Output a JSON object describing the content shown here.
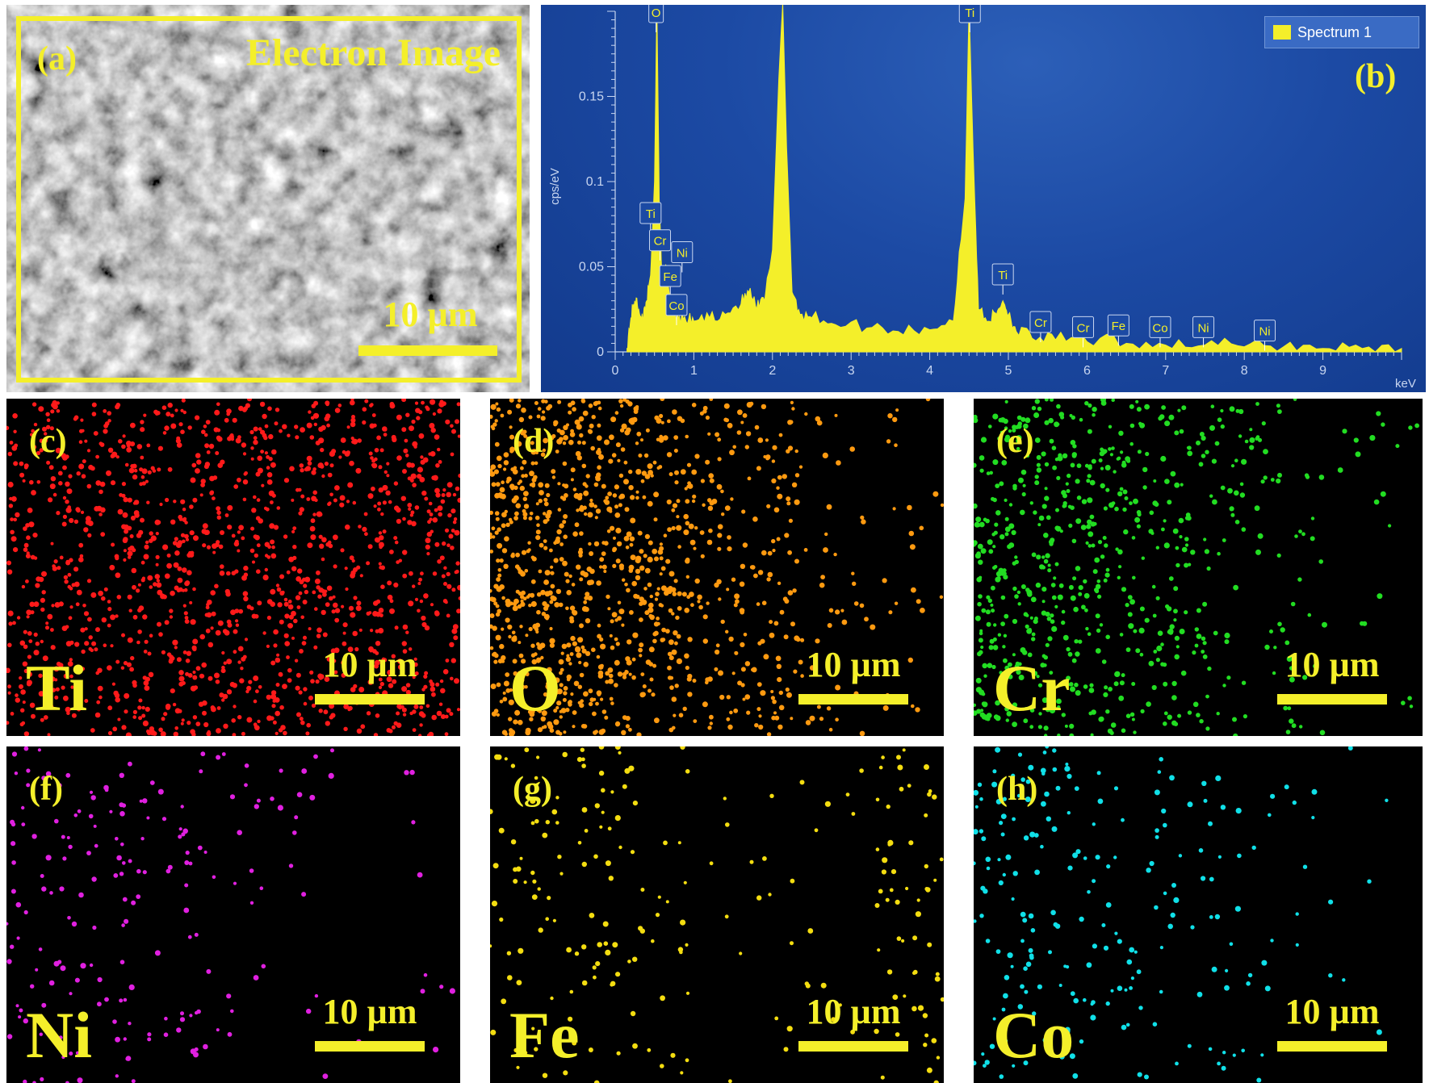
{
  "panel_a": {
    "label": "(a)",
    "title": "Electron Image",
    "scale_bar": "10 µm"
  },
  "panel_b": {
    "label": "(b)",
    "legend": "Spectrum 1",
    "colors": {
      "spectrum": "#f4ef2a",
      "background": "#1c4aa4"
    }
  },
  "chart_data": {
    "type": "line",
    "xlabel": "keV",
    "ylabel": "cps/eV",
    "xlim": [
      0,
      10
    ],
    "ylim": [
      0,
      0.2
    ],
    "x_ticks": [
      "0",
      "1",
      "2",
      "3",
      "4",
      "5",
      "6",
      "7",
      "8",
      "9"
    ],
    "y_ticks": [
      "0",
      "0.05",
      "0.1",
      "0.15"
    ],
    "legend_position": "top-right",
    "series": [
      {
        "name": "Spectrum 1",
        "x": [
          0.15,
          0.2,
          0.25,
          0.3,
          0.35,
          0.4,
          0.45,
          0.5,
          0.53,
          0.56,
          0.6,
          0.65,
          0.7,
          0.75,
          0.8,
          0.9,
          1.0,
          1.2,
          1.4,
          1.6,
          1.7,
          1.8,
          1.9,
          2.0,
          2.08,
          2.13,
          2.18,
          2.25,
          2.35,
          2.5,
          2.8,
          3.2,
          3.6,
          4.0,
          4.3,
          4.45,
          4.5,
          4.55,
          4.62,
          4.75,
          4.85,
          4.93,
          5.0,
          5.1,
          5.3,
          5.6,
          6.0,
          6.5,
          7.0,
          7.5,
          8.0,
          8.5,
          9.0,
          9.5,
          10.0
        ],
        "y": [
          0.002,
          0.02,
          0.03,
          0.025,
          0.018,
          0.03,
          0.045,
          0.1,
          0.205,
          0.09,
          0.04,
          0.05,
          0.03,
          0.022,
          0.02,
          0.018,
          0.018,
          0.02,
          0.022,
          0.028,
          0.035,
          0.025,
          0.03,
          0.06,
          0.16,
          0.205,
          0.12,
          0.035,
          0.022,
          0.02,
          0.016,
          0.014,
          0.012,
          0.013,
          0.018,
          0.09,
          0.205,
          0.12,
          0.025,
          0.018,
          0.022,
          0.03,
          0.022,
          0.012,
          0.008,
          0.007,
          0.006,
          0.005,
          0.004,
          0.004,
          0.003,
          0.003,
          0.002,
          0.002,
          0.002
        ]
      }
    ],
    "peak_labels": [
      {
        "text": "O",
        "x": 0.52,
        "y": 0.2
      },
      {
        "text": "Ti",
        "x": 4.51,
        "y": 0.2
      },
      {
        "text": "Ti",
        "x": 0.45,
        "y": 0.082
      },
      {
        "text": "Cr",
        "x": 0.57,
        "y": 0.066
      },
      {
        "text": "Ni",
        "x": 0.85,
        "y": 0.059
      },
      {
        "text": "Fe",
        "x": 0.7,
        "y": 0.045
      },
      {
        "text": "Co",
        "x": 0.78,
        "y": 0.028
      },
      {
        "text": "Ti",
        "x": 4.93,
        "y": 0.046
      },
      {
        "text": "Cr",
        "x": 5.41,
        "y": 0.018
      },
      {
        "text": "Cr",
        "x": 5.95,
        "y": 0.015
      },
      {
        "text": "Fe",
        "x": 6.4,
        "y": 0.016
      },
      {
        "text": "Co",
        "x": 6.93,
        "y": 0.015
      },
      {
        "text": "Ni",
        "x": 7.48,
        "y": 0.015
      },
      {
        "text": "Ni",
        "x": 8.26,
        "y": 0.013
      }
    ]
  },
  "maps": [
    {
      "label": "(c)",
      "element": "Ti",
      "scale_bar": "10 µm",
      "color": "#ff1a1a",
      "count": 1400,
      "density": "uniform"
    },
    {
      "label": "(d)",
      "element": "O",
      "scale_bar": "10 µm",
      "color": "#ff9a10",
      "count": 1100,
      "density": "left"
    },
    {
      "label": "(e)",
      "element": "Cr",
      "scale_bar": "10 µm",
      "color": "#22dd22",
      "count": 700,
      "density": "left"
    },
    {
      "label": "(f)",
      "element": "Ni",
      "scale_bar": "10 µm",
      "color": "#e020e0",
      "count": 200,
      "density": "left"
    },
    {
      "label": "(g)",
      "element": "Fe",
      "scale_bar": "10 µm",
      "color": "#f4dd10",
      "count": 220,
      "density": "edges"
    },
    {
      "label": "(h)",
      "element": "Co",
      "scale_bar": "10 µm",
      "color": "#10e0e8",
      "count": 220,
      "density": "left"
    }
  ]
}
